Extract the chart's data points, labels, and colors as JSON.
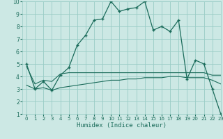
{
  "xlabel": "Humidex (Indice chaleur)",
  "xlim": [
    -0.5,
    23
  ],
  "ylim": [
    1,
    10
  ],
  "yticks": [
    1,
    2,
    3,
    4,
    5,
    6,
    7,
    8,
    9,
    10
  ],
  "xticks": [
    0,
    1,
    2,
    3,
    4,
    5,
    6,
    7,
    8,
    9,
    10,
    11,
    12,
    13,
    14,
    15,
    16,
    17,
    18,
    19,
    20,
    21,
    22,
    23
  ],
  "bg_color": "#cce8e4",
  "grid_color": "#99ccc6",
  "line_color": "#1a6b5a",
  "series_main": [
    5.0,
    3.0,
    3.6,
    2.9,
    4.1,
    4.7,
    6.5,
    7.3,
    8.5,
    8.6,
    10.0,
    9.2,
    9.4,
    9.5,
    10.0,
    7.7,
    8.0,
    7.6,
    8.5,
    3.8,
    5.3,
    5.0,
    3.0,
    1.0
  ],
  "series_upper": [
    4.8,
    3.4,
    3.7,
    3.6,
    4.2,
    4.3,
    4.3,
    4.3,
    4.3,
    4.3,
    4.3,
    4.3,
    4.3,
    4.3,
    4.3,
    4.3,
    4.3,
    4.3,
    4.3,
    4.3,
    4.3,
    4.3,
    4.1,
    4.1
  ],
  "series_lower": [
    3.3,
    3.0,
    3.1,
    2.9,
    3.1,
    3.2,
    3.3,
    3.4,
    3.5,
    3.6,
    3.7,
    3.7,
    3.8,
    3.8,
    3.9,
    3.9,
    3.9,
    4.0,
    4.0,
    3.9,
    3.9,
    3.9,
    3.7,
    3.4
  ]
}
